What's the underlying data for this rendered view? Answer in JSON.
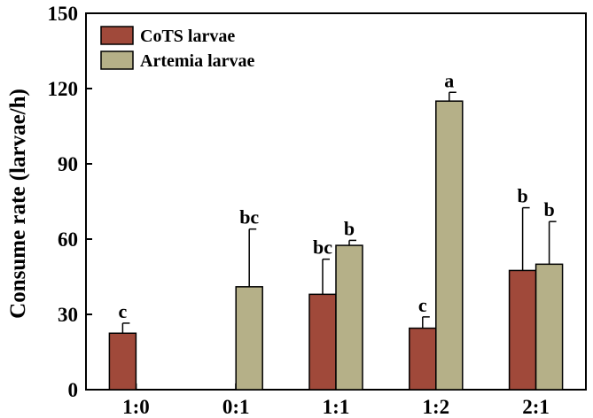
{
  "chart_data": {
    "type": "bar",
    "categories": [
      "1:0",
      "0:1",
      "1:1",
      "1:2",
      "2:1"
    ],
    "ylabel": "Consume rate (larvae/h)",
    "ylim": [
      0,
      150
    ],
    "yticks": [
      0,
      30,
      60,
      90,
      120,
      150
    ],
    "legend_position": "top-left",
    "series": [
      {
        "name": "CoTS larvae",
        "color": "#A0493A",
        "values": [
          22.5,
          null,
          38,
          24.5,
          47.5
        ],
        "errors": [
          4,
          null,
          14,
          4.5,
          25
        ],
        "sig_labels": [
          "c",
          "",
          "bc",
          "c",
          "b"
        ]
      },
      {
        "name": "Artemia larvae",
        "color": "#B5B088",
        "values": [
          null,
          41,
          57.5,
          115,
          50
        ],
        "errors": [
          null,
          23,
          2,
          3.5,
          17
        ],
        "sig_labels": [
          "",
          "bc",
          "b",
          "a",
          "b"
        ]
      }
    ]
  }
}
